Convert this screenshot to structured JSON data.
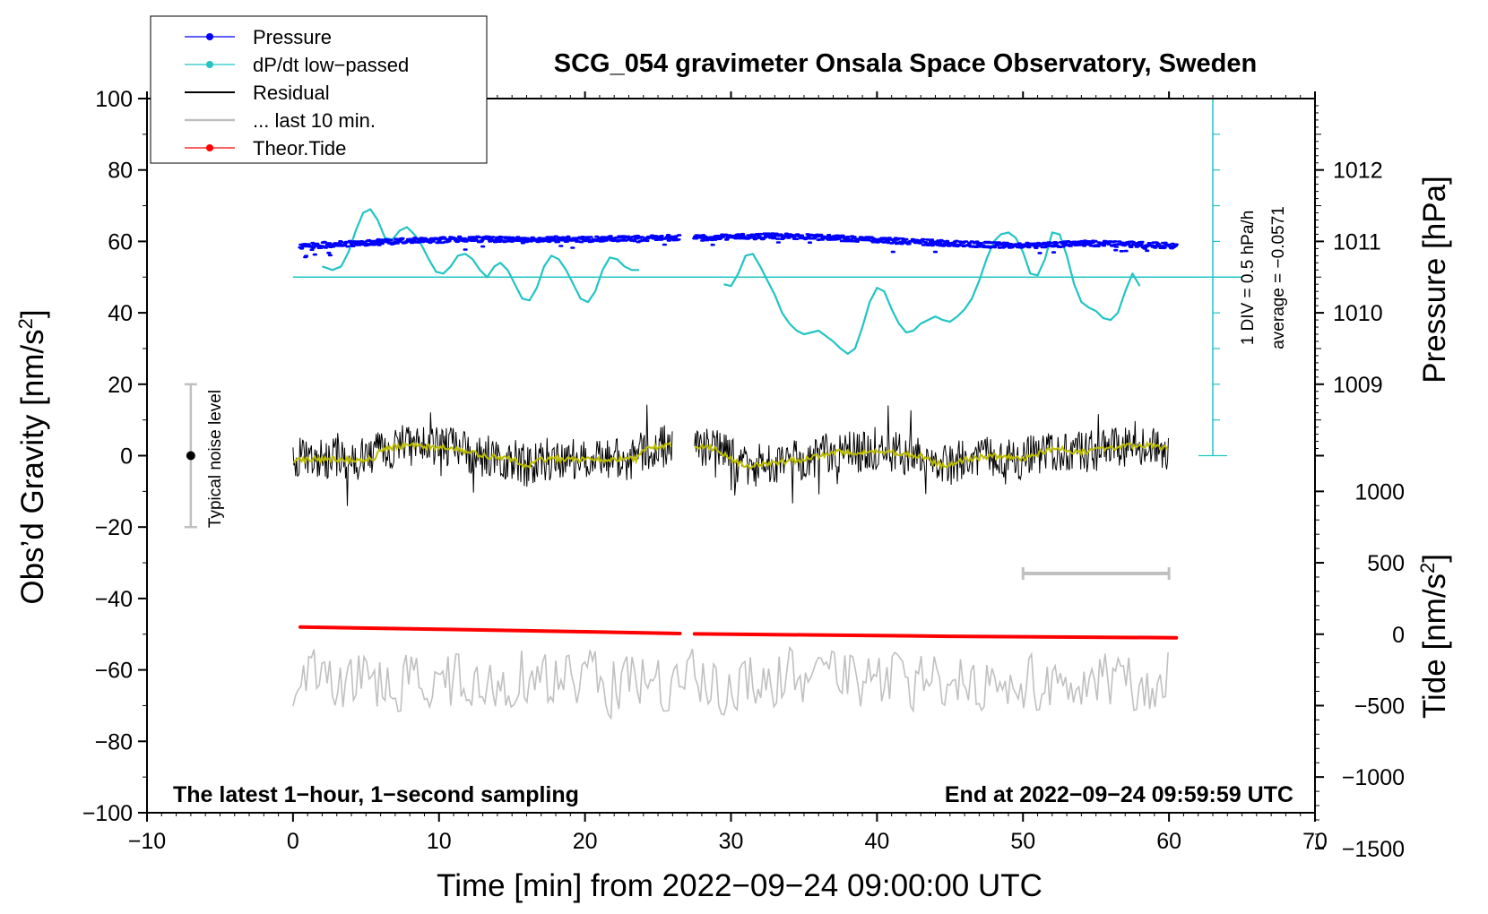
{
  "chart_data": {
    "type": "line",
    "title": "SCG_054 gravimeter Onsala Space Observatory, Sweden",
    "xlabel": "Time [min] from 2022−09−24 09:00:00 UTC",
    "ylabel_left": "Obs’d Gravity [nm/s²]",
    "ylabel_left_main": "Obs’d Gravity [nm/s",
    "ylabel_right_pressure": "Pressure [hPa]",
    "ylabel_right_tide_main": "Tide [nm/s",
    "ylabel_sup": "2",
    "ylabel_close": "]",
    "xlim": [
      -10,
      70
    ],
    "ylim": [
      -100,
      100
    ],
    "x_ticks": [
      -10,
      0,
      10,
      20,
      30,
      40,
      50,
      60,
      70
    ],
    "x_tick_labels": [
      "−10",
      "0",
      "10",
      "20",
      "30",
      "40",
      "50",
      "60",
      "70"
    ],
    "y_ticks": [
      -100,
      -80,
      -60,
      -40,
      -20,
      0,
      20,
      40,
      60,
      80,
      100
    ],
    "y_tick_labels": [
      "−100",
      "−80",
      "−60",
      "−40",
      "−20",
      "0",
      "20",
      "40",
      "60",
      "80",
      "100"
    ],
    "pressure_ticks": [
      1009,
      1010,
      1011,
      1012
    ],
    "pressure_tick_labels": [
      "1009",
      "1010",
      "1011",
      "1012"
    ],
    "pressure_axis_map": {
      "hpa_at_gravity_60": 1011,
      "gravity_units_per_hpa": 20
    },
    "tide_ticks": [
      1000,
      500,
      0,
      -500,
      -1000,
      -1500
    ],
    "tide_tick_labels": [
      "1000",
      "500",
      "0",
      "−500",
      "−1000",
      "−1500"
    ],
    "tide_axis_map": {
      "tide_at_gravity_minus50": 0,
      "gravity_units_per_tide_unit": 0.04
    },
    "legend": {
      "position": "top-left",
      "entries": [
        {
          "label": "Pressure",
          "color": "#0000ff",
          "marker": true
        },
        {
          "label": "dP/dt low−passed",
          "color": "#22c4c4",
          "marker": true
        },
        {
          "label": "Residual",
          "color": "#000000",
          "marker": false
        },
        {
          "label": "... last 10 min.",
          "color": "#c0c0c0",
          "marker": false
        },
        {
          "label": "Theor.Tide",
          "color": "#ff0000",
          "marker": true
        }
      ]
    },
    "annotations": {
      "bottom_left": "The latest 1−hour, 1−second sampling",
      "bottom_right": "End at 2022−09−24 09:59:59 UTC",
      "noise_label": "Typical noise level",
      "div_label": "1 DIV = 0.5 hPa/h",
      "average_label": "average = −0.0571"
    },
    "noise_bar": {
      "x": -7,
      "center": 0,
      "low": -20,
      "high": 20
    },
    "dpdt_scale_bar": {
      "x": 63,
      "zero_line_y": 50,
      "y_from": 0,
      "y_to": 100,
      "tick_every": 10
    },
    "last10_bar": {
      "x_from": 50,
      "x_to": 60,
      "y": -33
    },
    "series": [
      {
        "name": "Pressure",
        "color": "#0000ff",
        "segments": [
          [
            0.5,
            26.5
          ],
          [
            27.5,
            60.5
          ]
        ],
        "points": [
          [
            0.5,
            58.6
          ],
          [
            2,
            59.0
          ],
          [
            4,
            59.4
          ],
          [
            6,
            59.8
          ],
          [
            8,
            60.2
          ],
          [
            10,
            60.4
          ],
          [
            12,
            60.6
          ],
          [
            14,
            60.6
          ],
          [
            16,
            60.6
          ],
          [
            18,
            60.6
          ],
          [
            20,
            60.6
          ],
          [
            22,
            60.8
          ],
          [
            24,
            60.9
          ],
          [
            26,
            61.0
          ],
          [
            27.5,
            61.0
          ],
          [
            30,
            61.2
          ],
          [
            32,
            61.4
          ],
          [
            34,
            61.5
          ],
          [
            36,
            61.2
          ],
          [
            38,
            60.8
          ],
          [
            40,
            60.4
          ],
          [
            42,
            60.0
          ],
          [
            44,
            59.6
          ],
          [
            46,
            59.3
          ],
          [
            48,
            59.0
          ],
          [
            50,
            58.8
          ],
          [
            52,
            59.1
          ],
          [
            54,
            59.4
          ],
          [
            56,
            59.3
          ],
          [
            58,
            59.1
          ],
          [
            60.5,
            58.8
          ]
        ]
      },
      {
        "name": "dP/dt low−passed",
        "color": "#22c4c4",
        "segments": [
          [
            [
              2,
              53
            ],
            [
              2.7,
              52
            ],
            [
              3.3,
              53
            ],
            [
              3.8,
              57
            ],
            [
              4.3,
              63
            ],
            [
              4.8,
              68
            ],
            [
              5.3,
              69
            ],
            [
              5.8,
              66
            ],
            [
              6.3,
              61
            ],
            [
              6.8,
              60.5
            ],
            [
              7.3,
              63
            ],
            [
              7.8,
              64
            ],
            [
              8.3,
              62
            ],
            [
              8.8,
              59
            ],
            [
              9.3,
              55
            ],
            [
              9.8,
              51.5
            ],
            [
              10.3,
              51
            ],
            [
              10.8,
              53
            ],
            [
              11.3,
              56
            ],
            [
              11.8,
              56.5
            ],
            [
              12.3,
              55
            ],
            [
              12.8,
              52
            ],
            [
              13.3,
              50
            ],
            [
              13.8,
              53
            ],
            [
              14.2,
              54
            ],
            [
              14.7,
              52
            ],
            [
              15.2,
              48
            ],
            [
              15.7,
              44
            ],
            [
              16.2,
              43.5
            ],
            [
              16.7,
              47
            ],
            [
              17.2,
              53
            ],
            [
              17.7,
              56
            ],
            [
              18.2,
              55
            ],
            [
              18.7,
              52
            ],
            [
              19.2,
              48
            ],
            [
              19.7,
              44
            ],
            [
              20.2,
              43
            ],
            [
              20.7,
              46
            ],
            [
              21.2,
              52
            ],
            [
              21.7,
              55.5
            ],
            [
              22.2,
              55
            ],
            [
              22.7,
              53
            ],
            [
              23.2,
              52
            ],
            [
              23.7,
              52
            ]
          ],
          [
            [
              29.5,
              48
            ],
            [
              30,
              47.5
            ],
            [
              30.5,
              51
            ],
            [
              31,
              56
            ],
            [
              31.5,
              56.5
            ],
            [
              32,
              53
            ],
            [
              32.5,
              49
            ],
            [
              33,
              45
            ],
            [
              33.5,
              40
            ],
            [
              34,
              37
            ],
            [
              34.5,
              35
            ],
            [
              35,
              34
            ],
            [
              35.5,
              34.5
            ],
            [
              36,
              35
            ],
            [
              36.5,
              33.5
            ],
            [
              37,
              32
            ],
            [
              37.5,
              30
            ],
            [
              38,
              28.5
            ],
            [
              38.5,
              30
            ],
            [
              39,
              36
            ],
            [
              39.5,
              43
            ],
            [
              40,
              47
            ],
            [
              40.5,
              46
            ],
            [
              41,
              41
            ],
            [
              41.5,
              37
            ],
            [
              42,
              34.5
            ],
            [
              42.5,
              35
            ],
            [
              43,
              37
            ],
            [
              43.5,
              38
            ],
            [
              44,
              39
            ],
            [
              44.5,
              38
            ],
            [
              45,
              37.5
            ],
            [
              45.5,
              39
            ],
            [
              46,
              41
            ],
            [
              46.5,
              44
            ],
            [
              47,
              49
            ],
            [
              47.5,
              55
            ],
            [
              48,
              60
            ],
            [
              48.5,
              62
            ],
            [
              49,
              62.5
            ],
            [
              49.5,
              61
            ],
            [
              50,
              57
            ],
            [
              50.5,
              51
            ],
            [
              51,
              50.5
            ],
            [
              51.5,
              55
            ],
            [
              52,
              62.5
            ],
            [
              52.5,
              62
            ],
            [
              53,
              56
            ],
            [
              53.5,
              48
            ],
            [
              54,
              43
            ],
            [
              54.5,
              41.5
            ],
            [
              55,
              40.5
            ],
            [
              55.5,
              38.5
            ],
            [
              56,
              38
            ],
            [
              56.5,
              40
            ],
            [
              57,
              46
            ],
            [
              57.5,
              51
            ],
            [
              58,
              47.5
            ]
          ]
        ]
      },
      {
        "name": "Residual",
        "color": "#000000",
        "segments": [
          [
            0,
            26
          ],
          [
            27.5,
            60
          ]
        ],
        "smooth_color": "#bcbc00",
        "smooth_points": [
          [
            0,
            -1
          ],
          [
            3,
            -1
          ],
          [
            5.5,
            -1
          ],
          [
            6,
            2
          ],
          [
            8,
            3
          ],
          [
            11,
            2
          ],
          [
            13,
            0
          ],
          [
            15,
            -1
          ],
          [
            16,
            -3
          ],
          [
            17,
            -1
          ],
          [
            19,
            -1
          ],
          [
            22,
            -1
          ],
          [
            23.5,
            -1
          ],
          [
            24,
            2
          ],
          [
            26,
            3
          ],
          [
            27.5,
            3
          ],
          [
            29,
            2
          ],
          [
            30,
            -1
          ],
          [
            31,
            -3
          ],
          [
            33,
            -2
          ],
          [
            35,
            -1
          ],
          [
            37,
            1
          ],
          [
            39,
            1
          ],
          [
            41,
            1
          ],
          [
            43,
            0
          ],
          [
            44.5,
            -3
          ],
          [
            46,
            -1
          ],
          [
            48,
            0
          ],
          [
            50,
            -1
          ],
          [
            52,
            2
          ],
          [
            54,
            1
          ],
          [
            56,
            2
          ],
          [
            58,
            3
          ],
          [
            60,
            2
          ]
        ]
      },
      {
        "name": "... last 10 min.",
        "color": "#c0c0c0",
        "segments": [
          [
            0,
            60
          ]
        ],
        "baseline": -63
      },
      {
        "name": "Theor.Tide",
        "color": "#ff0000",
        "segments": [
          [
            0.5,
            26.5
          ],
          [
            27.5,
            60.5
          ]
        ],
        "points": [
          [
            0.5,
            -48
          ],
          [
            10,
            -48.6
          ],
          [
            20,
            -49.3
          ],
          [
            26.5,
            -49.8
          ],
          [
            27.5,
            -49.9
          ],
          [
            35,
            -50.2
          ],
          [
            45,
            -50.6
          ],
          [
            60.5,
            -51
          ]
        ]
      }
    ]
  }
}
